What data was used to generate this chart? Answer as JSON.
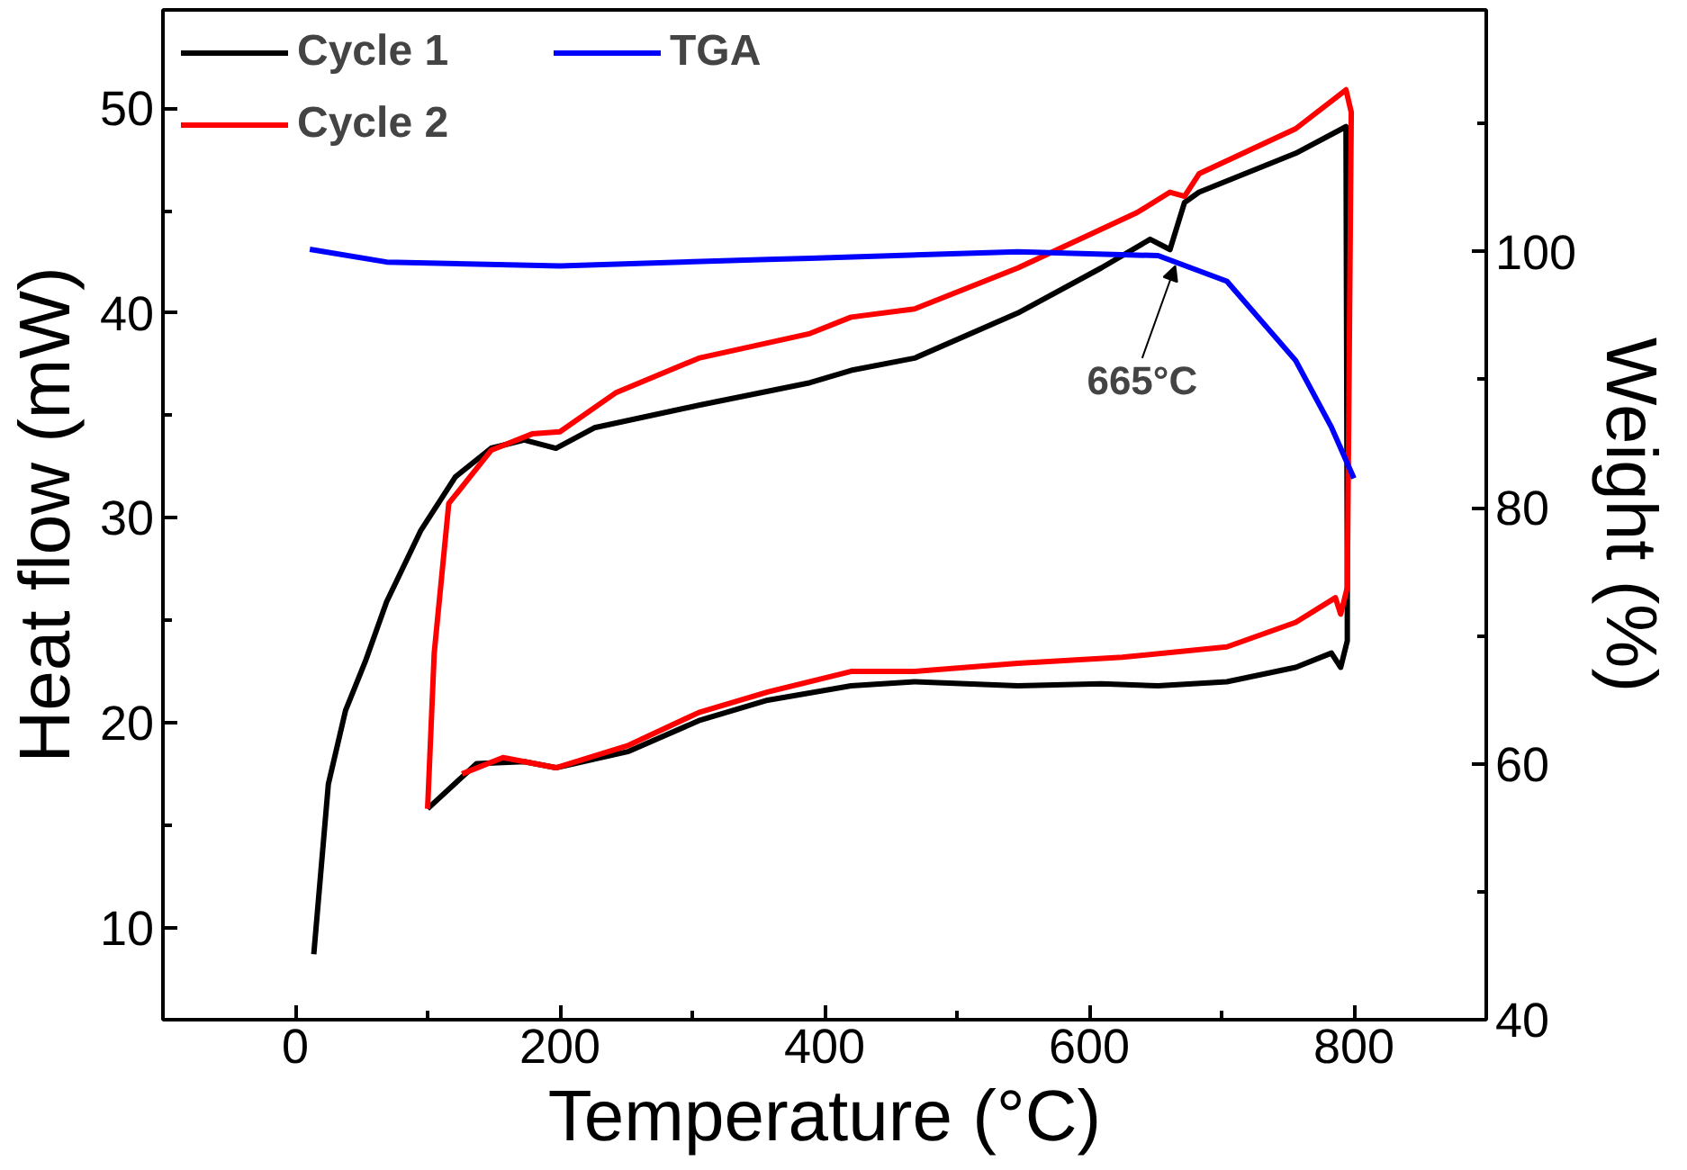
{
  "chart_data": {
    "type": "line",
    "xlabel": "Temperature (°C)",
    "ylabel": "Heat flow (mW)",
    "y2label": "Weight (%)",
    "xlim": [
      -100,
      900
    ],
    "xticks": [
      {
        "value": -100,
        "label": null
      },
      0,
      {
        "value": 100,
        "label": null
      },
      200,
      {
        "value": 300,
        "label": null
      },
      400,
      {
        "value": 500,
        "label": null
      },
      600,
      {
        "value": 700,
        "label": null
      },
      800
    ],
    "ylim": [
      5.5,
      54.8
    ],
    "yticks": [
      10,
      {
        "value": 15,
        "label": null
      },
      20,
      {
        "value": 25,
        "label": null
      },
      30,
      {
        "value": 35,
        "label": null
      },
      40,
      {
        "value": 45,
        "label": null
      },
      50
    ],
    "y2lim": [
      40,
      118.9
    ],
    "y2ticks": [
      40,
      {
        "value": 50,
        "label": null
      },
      60,
      {
        "value": 70,
        "label": null
      },
      80,
      {
        "value": 90,
        "label": null
      },
      100,
      {
        "value": 110,
        "label": null
      }
    ],
    "grid": false,
    "legend": "top left",
    "line_style": "solid",
    "series": [
      {
        "name": "Cycle 1",
        "color": "#000000",
        "x": [
          14,
          25,
          38,
          53,
          69,
          95,
          121,
          148,
          173,
          197,
          226,
          305,
          389,
          420,
          468,
          546,
          609,
          646,
          661,
          672,
          683,
          756,
          794,
          795,
          795,
          790,
          783,
          756,
          704,
          652,
          609,
          546,
          468,
          420,
          357,
          305,
          252,
          197,
          173,
          137,
          100
        ],
        "values": [
          8.7,
          17.0,
          20.6,
          23.0,
          25.9,
          29.4,
          32.0,
          33.4,
          33.8,
          33.4,
          34.4,
          35.5,
          36.6,
          37.2,
          37.8,
          40.0,
          42.2,
          43.6,
          43.1,
          45.4,
          45.9,
          47.8,
          49.1,
          26.6,
          24.0,
          22.7,
          23.4,
          22.7,
          22.0,
          21.8,
          21.9,
          21.8,
          22.0,
          21.8,
          21.1,
          20.1,
          18.6,
          17.8,
          18.1,
          18.0,
          15.8
        ]
      },
      {
        "name": "Cycle 2",
        "color": "#ff0000",
        "x": [
          100,
          105,
          116,
          132,
          148,
          179,
          200,
          242,
          305,
          389,
          420,
          468,
          546,
          636,
          661,
          672,
          683,
          756,
          794,
          798,
          795,
          790,
          786,
          756,
          704,
          625,
          546,
          468,
          420,
          357,
          305,
          252,
          197,
          157,
          126
        ],
        "values": [
          15.8,
          23.4,
          30.7,
          32.0,
          33.3,
          34.1,
          34.2,
          36.1,
          37.8,
          39.0,
          39.8,
          40.2,
          42.2,
          44.9,
          45.9,
          45.7,
          46.8,
          49.0,
          50.9,
          49.8,
          26.6,
          25.3,
          26.1,
          24.9,
          23.7,
          23.2,
          22.9,
          22.5,
          22.5,
          21.5,
          20.5,
          18.9,
          17.8,
          18.3,
          17.5
        ]
      },
      {
        "name": "TGA",
        "color": "#0000ff",
        "axis": "y2",
        "x": [
          11,
          69,
          200,
          357,
          389,
          546,
          652,
          704,
          756,
          783,
          800
        ],
        "values": [
          100.2,
          99.2,
          98.9,
          99.4,
          99.5,
          100,
          99.7,
          97.7,
          91.5,
          86.3,
          82.3
        ]
      }
    ],
    "annotations": [
      {
        "text": "665°C",
        "x": 665,
        "y": 42.3
      }
    ]
  }
}
